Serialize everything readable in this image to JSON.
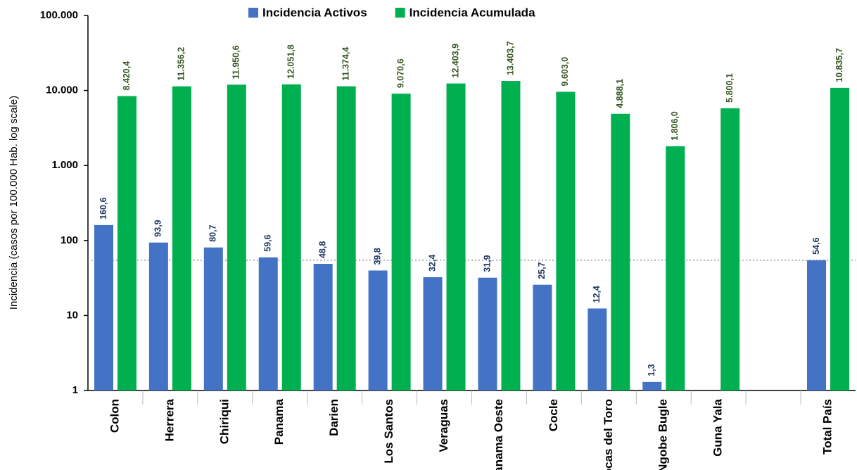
{
  "chart_data": {
    "type": "bar",
    "log_scale": true,
    "y_axis_label": "Incidencia (casos por 100.000 Hab. log scale)",
    "categories": [
      "Colon",
      "Herrera",
      "Chiriqui",
      "Panama",
      "Darien",
      "Los Santos",
      "Veraguas",
      "Panama Oeste",
      "Cocle",
      "Bocas del Toro",
      "Ngobe Bugle",
      "Guna Yala",
      null,
      "Total País"
    ],
    "series": [
      {
        "name": "Incidencia Activos",
        "color": "#4472c4",
        "values": [
          160.6,
          93.9,
          80.7,
          59.6,
          48.8,
          39.8,
          32.4,
          31.9,
          25.7,
          12.4,
          1.3,
          null,
          null,
          54.6
        ],
        "value_labels": [
          "160,6",
          "93,9",
          "80,7",
          "59,6",
          "48,8",
          "39,8",
          "32,4",
          "31,9",
          "25,7",
          "12,4",
          "1,3",
          null,
          null,
          "54,6"
        ]
      },
      {
        "name": "Incidencia Acumulada",
        "color": "#00b050",
        "values": [
          8420.4,
          11356.2,
          11950.6,
          12051.8,
          11374.4,
          9070.6,
          12403.9,
          13403.7,
          9603.0,
          4888.1,
          1806.0,
          5800.1,
          null,
          10835.7
        ],
        "value_labels": [
          "8.420,4",
          "11.356,2",
          "11.950,6",
          "12.051,8",
          "11.374,4",
          "9.070,6",
          "12.403,9",
          "13.403,7",
          "9.603,0",
          "4.888,1",
          "1.806,0",
          "5.800,1",
          null,
          "10.835,7"
        ]
      }
    ],
    "reference_line": 54.6,
    "ylim": [
      1,
      100000
    ],
    "yticks": [
      1,
      10,
      100,
      {
        "value": 1000,
        "label": "1.000"
      },
      {
        "value": 10000,
        "label": "10.000"
      },
      {
        "value": 100000,
        "label": "100.000"
      }
    ],
    "legend": "top"
  }
}
